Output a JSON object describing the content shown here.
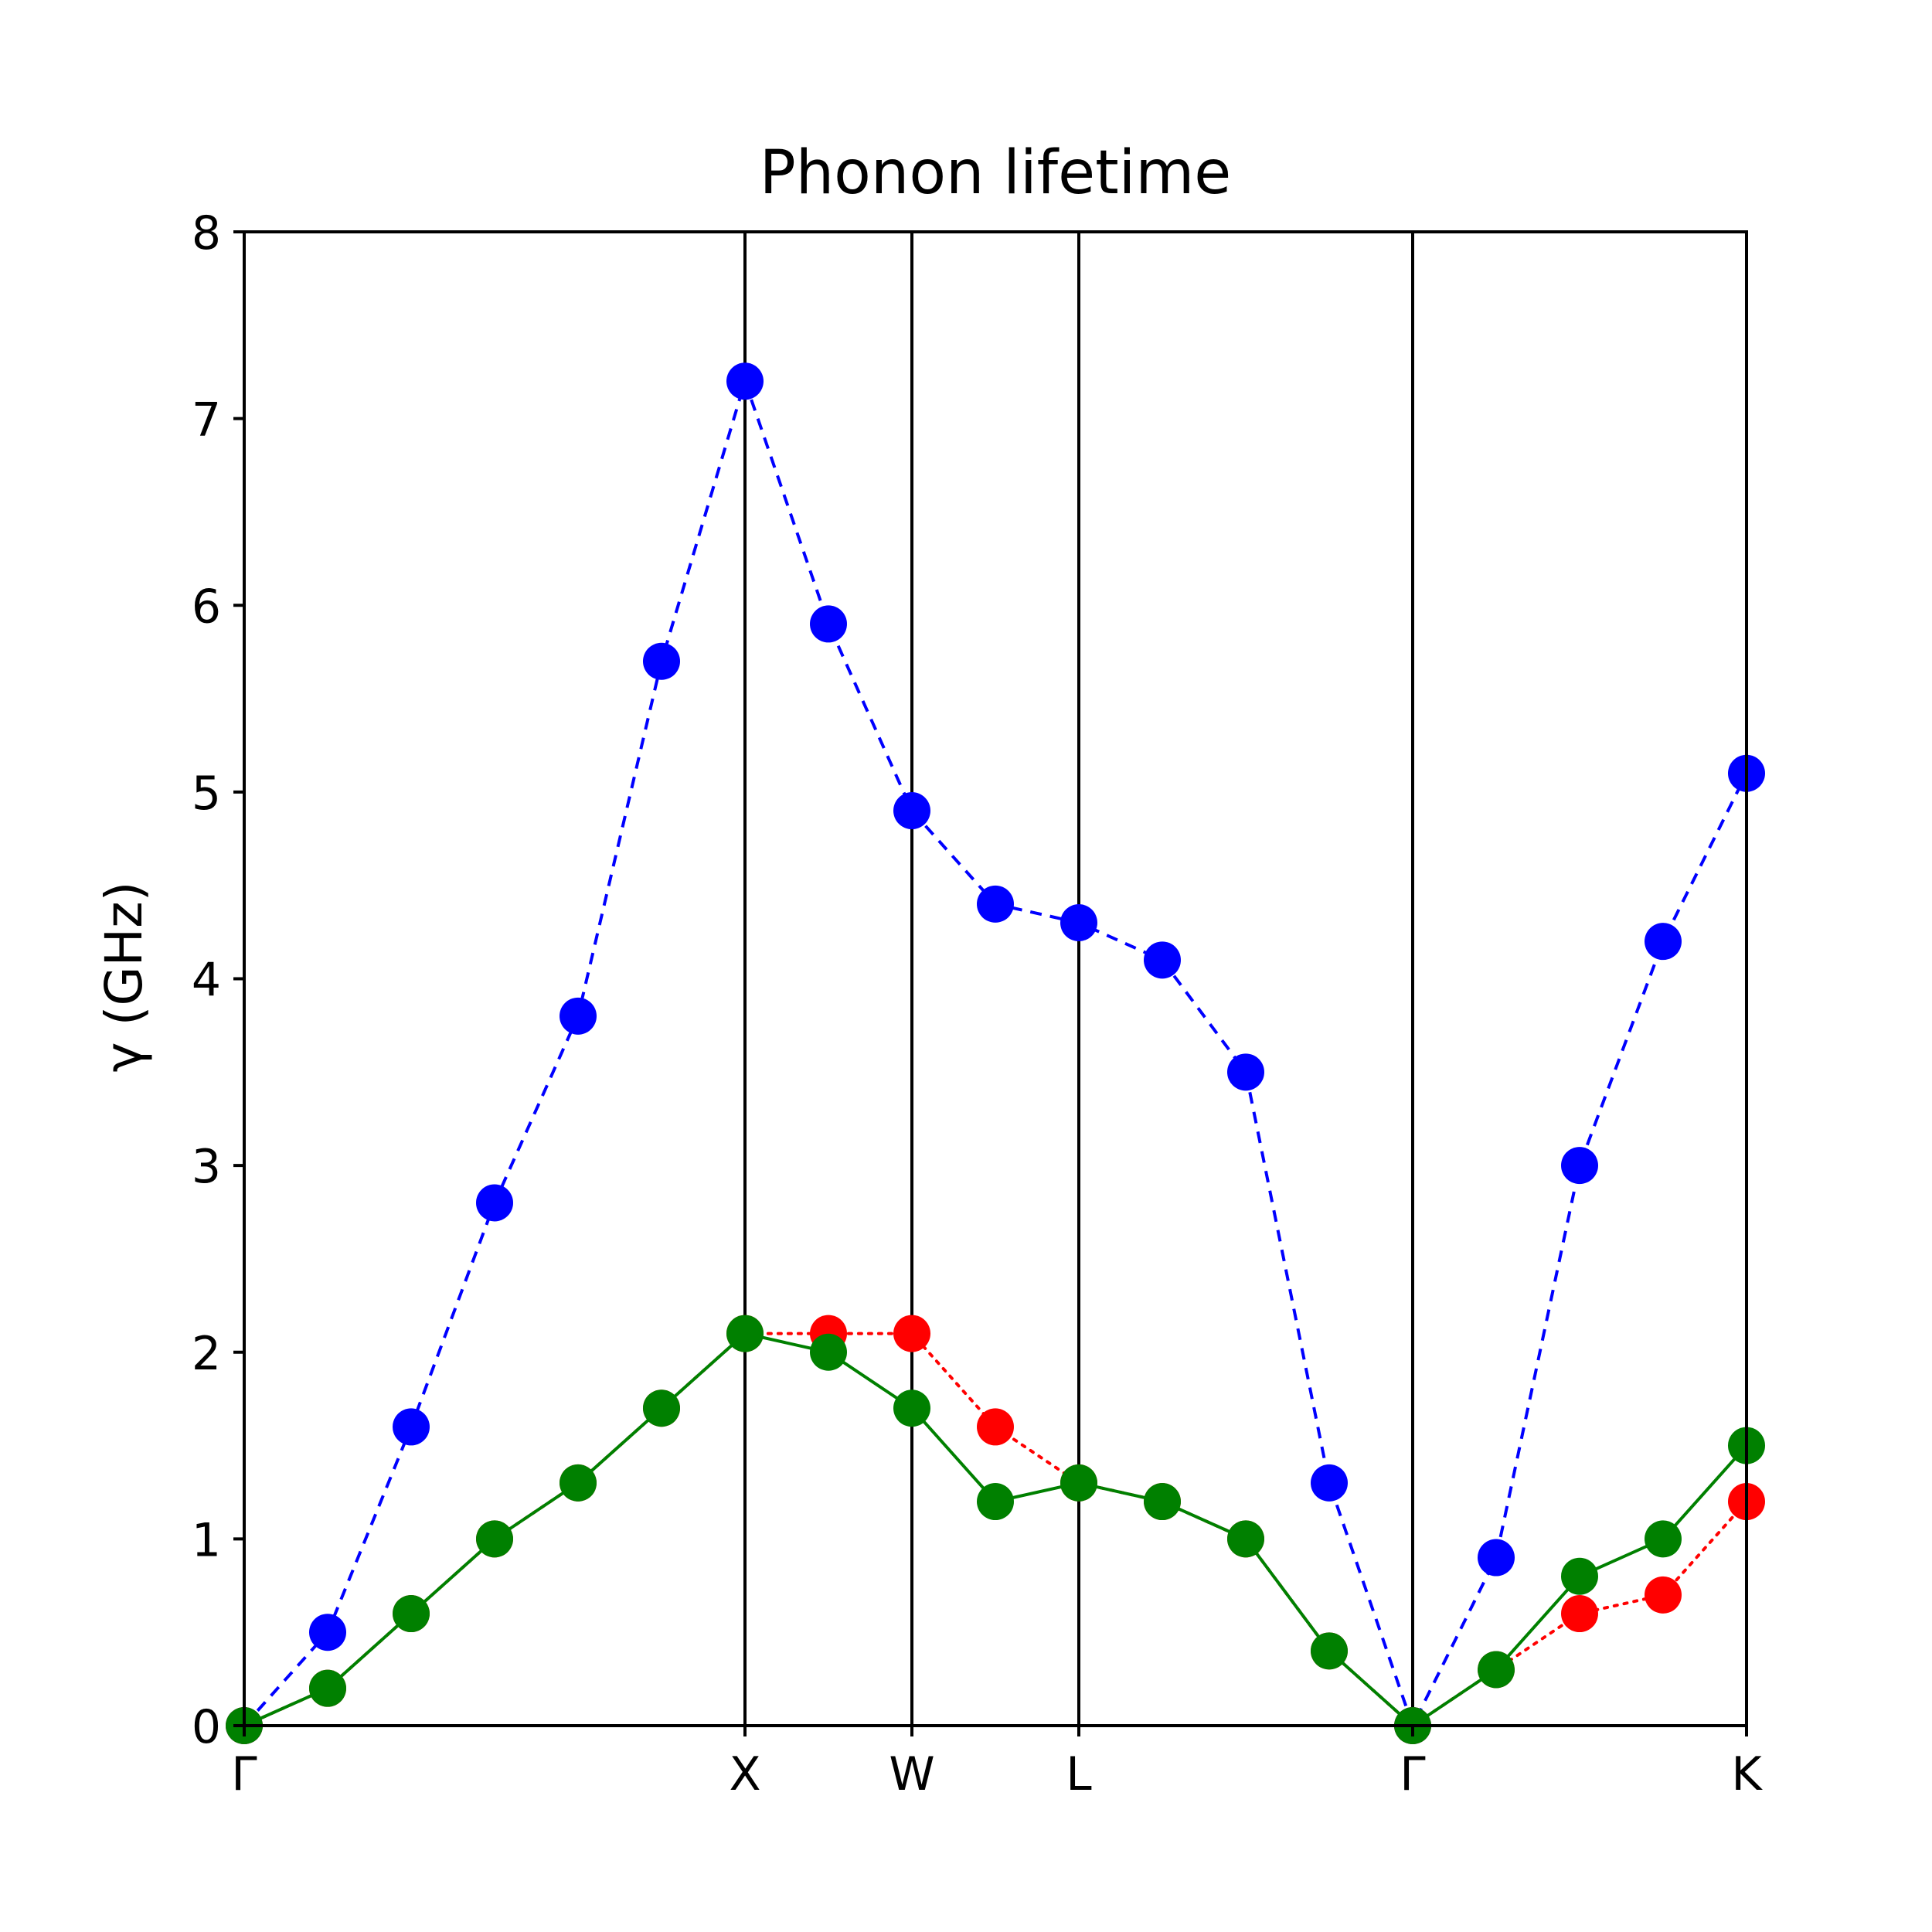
{
  "chart_data": {
    "type": "line",
    "title": "Phonon lifetime",
    "xlabel": "",
    "ylabel": "γ (GHz)",
    "ylim": [
      0,
      8
    ],
    "xlim": [
      0,
      18
    ],
    "y_ticks": [
      "0",
      "1",
      "2",
      "3",
      "4",
      "5",
      "6",
      "7",
      "8"
    ],
    "x_ticks": [
      {
        "label": "Γ",
        "x": 0
      },
      {
        "label": "X",
        "x": 6
      },
      {
        "label": "W",
        "x": 8
      },
      {
        "label": "L",
        "x": 10
      },
      {
        "label": "Γ",
        "x": 14
      },
      {
        "label": "K",
        "x": 18
      }
    ],
    "vlines": [
      6,
      8,
      10,
      14
    ],
    "grid": false,
    "legend": "none",
    "series": [
      {
        "color": "#0000ff",
        "linestyle": "dashed",
        "x": [
          0,
          1,
          2,
          3,
          4,
          5,
          6,
          7,
          8,
          9,
          10,
          11,
          12,
          13,
          14,
          15,
          16,
          17,
          18
        ],
        "values": [
          0,
          0.5,
          1.6,
          2.8,
          3.8,
          5.7,
          7.2,
          5.9,
          4.9,
          4.4,
          4.3,
          4.1,
          3.5,
          1.3,
          0,
          0.9,
          3.0,
          4.2,
          5.1
        ]
      },
      {
        "color": "#ff0000",
        "linestyle": "dotted",
        "x": [
          0,
          1,
          2,
          3,
          4,
          5,
          6,
          7,
          8,
          9,
          10,
          11,
          12,
          13,
          14,
          15,
          16,
          17,
          18
        ],
        "values": [
          0,
          0.2,
          0.6,
          1.0,
          1.3,
          1.7,
          2.1,
          2.1,
          2.1,
          1.6,
          1.3,
          1.2,
          1.0,
          0.4,
          0,
          0.3,
          0.6,
          0.7,
          1.2
        ]
      },
      {
        "color": "#008000",
        "linestyle": "solid",
        "x": [
          0,
          1,
          2,
          3,
          4,
          5,
          6,
          7,
          8,
          9,
          10,
          11,
          12,
          13,
          14,
          15,
          16,
          17,
          18
        ],
        "values": [
          0,
          0.2,
          0.6,
          1.0,
          1.3,
          1.7,
          2.1,
          2.0,
          1.7,
          1.2,
          1.3,
          1.2,
          1.0,
          0.4,
          0,
          0.3,
          0.8,
          1.0,
          1.5
        ]
      }
    ]
  }
}
